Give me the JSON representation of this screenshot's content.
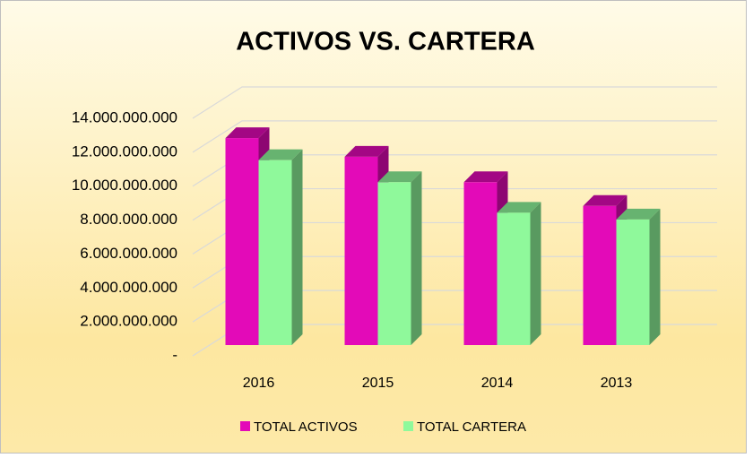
{
  "chart_data": {
    "type": "bar3d",
    "title": "ACTIVOS VS. CARTERA",
    "categories": [
      "2016",
      "2015",
      "2014",
      "2013"
    ],
    "series": [
      {
        "name": "TOTAL ACTIVOS",
        "color": "#e30ab8",
        "values": [
          12200000000,
          11100000000,
          9600000000,
          8200000000
        ]
      },
      {
        "name": "TOTAL CARTERA",
        "color": "#8ff99b",
        "values": [
          10900000000,
          9600000000,
          7800000000,
          7400000000
        ]
      }
    ],
    "ylim": [
      0,
      14000000000
    ],
    "yticks": [
      {
        "value": 0,
        "label": "-"
      },
      {
        "value": 2000000000,
        "label": "2.000.000.000"
      },
      {
        "value": 4000000000,
        "label": "4.000.000.000"
      },
      {
        "value": 6000000000,
        "label": "6.000.000.000"
      },
      {
        "value": 8000000000,
        "label": "8.000.000.000"
      },
      {
        "value": 10000000000,
        "label": "10.000.000.000"
      },
      {
        "value": 12000000000,
        "label": "12.000.000.000"
      },
      {
        "value": 14000000000,
        "label": "14.000.000.000"
      }
    ],
    "grid": true,
    "legend": "bottom"
  }
}
